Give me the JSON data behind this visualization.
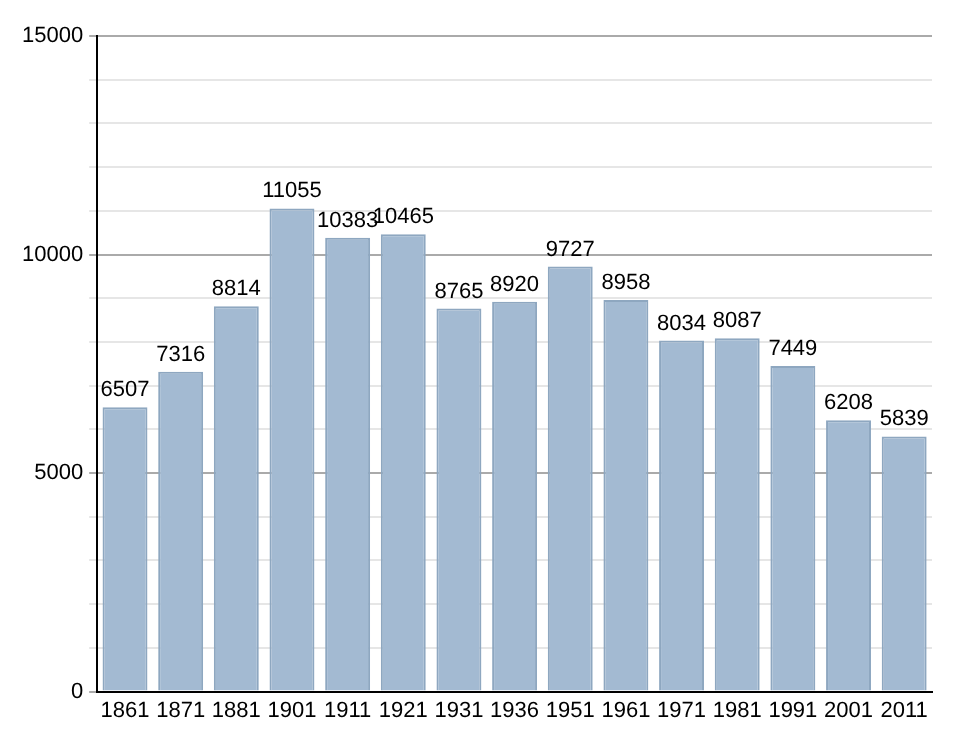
{
  "chart_data": {
    "type": "bar",
    "categories": [
      "1861",
      "1871",
      "1881",
      "1901",
      "1911",
      "1921",
      "1931",
      "1936",
      "1951",
      "1961",
      "1971",
      "1981",
      "1991",
      "2001",
      "2011"
    ],
    "values": [
      6507,
      7316,
      8814,
      11055,
      10383,
      10465,
      8765,
      8920,
      9727,
      8958,
      8034,
      8087,
      7449,
      6208,
      5839
    ],
    "color": "#a3bad2",
    "ylim": [
      0,
      15000
    ],
    "yticks": [
      0,
      {
        "value": 1000,
        "label": null
      },
      {
        "value": 2000,
        "label": null
      },
      {
        "value": 3000,
        "label": null
      },
      {
        "value": 4000,
        "label": null
      },
      5000,
      {
        "value": 6000,
        "label": null
      },
      {
        "value": 7000,
        "label": null
      },
      {
        "value": 8000,
        "label": null
      },
      {
        "value": 9000,
        "label": null
      },
      10000,
      {
        "value": 11000,
        "label": null
      },
      {
        "value": 12000,
        "label": null
      },
      {
        "value": 13000,
        "label": null
      },
      {
        "value": 14000,
        "label": null
      },
      15000
    ],
    "grid": true,
    "data_labels": true
  }
}
